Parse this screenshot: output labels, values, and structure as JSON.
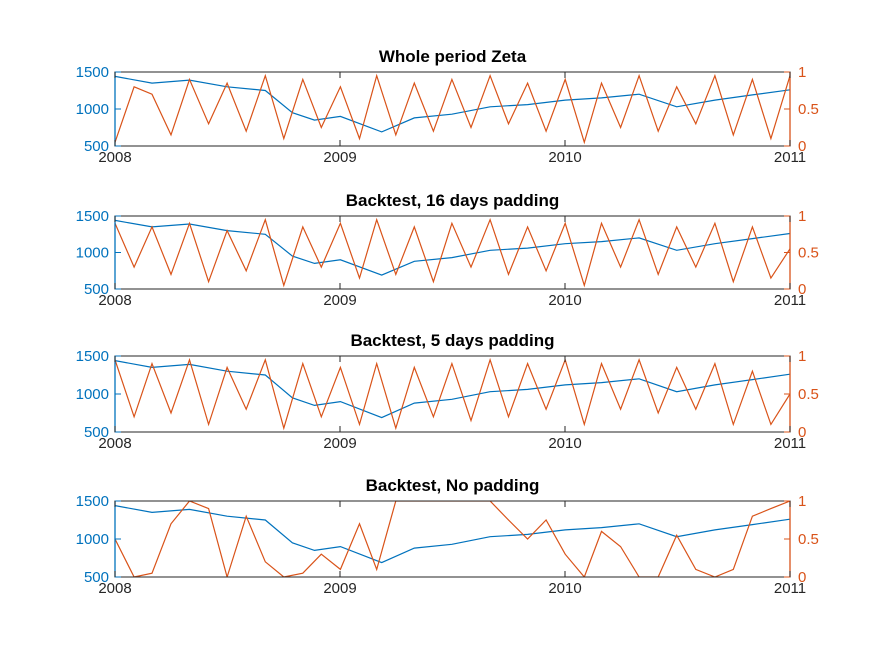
{
  "chart_data": [
    {
      "type": "line",
      "title": "Whole period Zeta",
      "x_ticks": [
        "2008",
        "2009",
        "2010",
        "2011"
      ],
      "xlim": [
        "2008-01-01",
        "2011-01-01"
      ],
      "y_left": {
        "ticks": [
          "500",
          "1000",
          "1500"
        ],
        "lim": [
          500,
          1500
        ],
        "color": "#0072BD"
      },
      "y_right": {
        "ticks": [
          "0",
          "0.5",
          "1"
        ],
        "lim": [
          0,
          1
        ],
        "color": "#D95319"
      },
      "series": [
        {
          "axis": "left",
          "color": "#0072BD",
          "x": [
            "2008-01-01",
            "2008-03-01",
            "2008-05-01",
            "2008-07-01",
            "2008-09-01",
            "2008-10-15",
            "2008-11-20",
            "2009-01-01",
            "2009-03-09",
            "2009-05-01",
            "2009-07-01",
            "2009-09-01",
            "2009-11-01",
            "2010-01-01",
            "2010-03-01",
            "2010-05-01",
            "2010-07-01",
            "2010-09-01",
            "2010-11-01",
            "2011-01-01"
          ],
          "y": [
            1440,
            1350,
            1390,
            1300,
            1250,
            950,
            850,
            900,
            690,
            880,
            930,
            1030,
            1060,
            1120,
            1150,
            1200,
            1030,
            1120,
            1190,
            1260
          ]
        },
        {
          "axis": "right",
          "color": "#D95319",
          "x": [
            "2008-01-01",
            "2008-02-01",
            "2008-03-01",
            "2008-04-01",
            "2008-05-01",
            "2008-06-01",
            "2008-07-01",
            "2008-08-01",
            "2008-09-01",
            "2008-10-01",
            "2008-11-01",
            "2008-12-01",
            "2009-01-01",
            "2009-02-01",
            "2009-03-01",
            "2009-04-01",
            "2009-05-01",
            "2009-06-01",
            "2009-07-01",
            "2009-08-01",
            "2009-09-01",
            "2009-10-01",
            "2009-11-01",
            "2009-12-01",
            "2010-01-01",
            "2010-02-01",
            "2010-03-01",
            "2010-04-01",
            "2010-05-01",
            "2010-06-01",
            "2010-07-01",
            "2010-08-01",
            "2010-09-01",
            "2010-10-01",
            "2010-11-01",
            "2010-12-01",
            "2011-01-01"
          ],
          "y": [
            0.05,
            0.8,
            0.7,
            0.15,
            0.9,
            0.3,
            0.85,
            0.2,
            0.95,
            0.1,
            0.9,
            0.25,
            0.8,
            0.1,
            0.95,
            0.15,
            0.85,
            0.2,
            0.9,
            0.25,
            0.95,
            0.3,
            0.85,
            0.2,
            0.9,
            0.05,
            0.85,
            0.25,
            0.95,
            0.2,
            0.8,
            0.3,
            0.95,
            0.15,
            0.9,
            0.1,
            0.95
          ]
        }
      ]
    },
    {
      "type": "line",
      "title": "Backtest, 16 days padding",
      "x_ticks": [
        "2008",
        "2009",
        "2010",
        "2011"
      ],
      "xlim": [
        "2008-01-01",
        "2011-01-01"
      ],
      "y_left": {
        "ticks": [
          "500",
          "1000",
          "1500"
        ],
        "lim": [
          500,
          1500
        ],
        "color": "#0072BD"
      },
      "y_right": {
        "ticks": [
          "0",
          "0.5",
          "1"
        ],
        "lim": [
          0,
          1
        ],
        "color": "#D95319"
      },
      "series": [
        {
          "axis": "left",
          "color": "#0072BD",
          "x": [
            "2008-01-01",
            "2008-03-01",
            "2008-05-01",
            "2008-07-01",
            "2008-09-01",
            "2008-10-15",
            "2008-11-20",
            "2009-01-01",
            "2009-03-09",
            "2009-05-01",
            "2009-07-01",
            "2009-09-01",
            "2009-11-01",
            "2010-01-01",
            "2010-03-01",
            "2010-05-01",
            "2010-07-01",
            "2010-09-01",
            "2010-11-01",
            "2011-01-01"
          ],
          "y": [
            1440,
            1350,
            1390,
            1300,
            1250,
            950,
            850,
            900,
            690,
            880,
            930,
            1030,
            1060,
            1120,
            1150,
            1200,
            1030,
            1120,
            1190,
            1260
          ]
        },
        {
          "axis": "right",
          "color": "#D95319",
          "x": [
            "2008-01-01",
            "2008-02-01",
            "2008-03-01",
            "2008-04-01",
            "2008-05-01",
            "2008-06-01",
            "2008-07-01",
            "2008-08-01",
            "2008-09-01",
            "2008-10-01",
            "2008-11-01",
            "2008-12-01",
            "2009-01-01",
            "2009-02-01",
            "2009-03-01",
            "2009-04-01",
            "2009-05-01",
            "2009-06-01",
            "2009-07-01",
            "2009-08-01",
            "2009-09-01",
            "2009-10-01",
            "2009-11-01",
            "2009-12-01",
            "2010-01-01",
            "2010-02-01",
            "2010-03-01",
            "2010-04-01",
            "2010-05-01",
            "2010-06-01",
            "2010-07-01",
            "2010-08-01",
            "2010-09-01",
            "2010-10-01",
            "2010-11-01",
            "2010-12-01",
            "2011-01-01"
          ],
          "y": [
            0.9,
            0.3,
            0.85,
            0.2,
            0.9,
            0.1,
            0.8,
            0.25,
            0.95,
            0.05,
            0.85,
            0.3,
            0.9,
            0.15,
            0.95,
            0.2,
            0.85,
            0.1,
            0.9,
            0.3,
            0.95,
            0.2,
            0.85,
            0.25,
            0.9,
            0.05,
            0.9,
            0.3,
            0.95,
            0.2,
            0.85,
            0.3,
            0.9,
            0.1,
            0.85,
            0.15,
            0.55
          ]
        }
      ]
    },
    {
      "type": "line",
      "title": "Backtest, 5 days padding",
      "x_ticks": [
        "2008",
        "2009",
        "2010",
        "2011"
      ],
      "xlim": [
        "2008-01-01",
        "2011-01-01"
      ],
      "y_left": {
        "ticks": [
          "500",
          "1000",
          "1500"
        ],
        "lim": [
          500,
          1500
        ],
        "color": "#0072BD"
      },
      "y_right": {
        "ticks": [
          "0",
          "0.5",
          "1"
        ],
        "lim": [
          0,
          1
        ],
        "color": "#D95319"
      },
      "series": [
        {
          "axis": "left",
          "color": "#0072BD",
          "x": [
            "2008-01-01",
            "2008-03-01",
            "2008-05-01",
            "2008-07-01",
            "2008-09-01",
            "2008-10-15",
            "2008-11-20",
            "2009-01-01",
            "2009-03-09",
            "2009-05-01",
            "2009-07-01",
            "2009-09-01",
            "2009-11-01",
            "2010-01-01",
            "2010-03-01",
            "2010-05-01",
            "2010-07-01",
            "2010-09-01",
            "2010-11-01",
            "2011-01-01"
          ],
          "y": [
            1440,
            1350,
            1390,
            1300,
            1250,
            950,
            850,
            900,
            690,
            880,
            930,
            1030,
            1060,
            1120,
            1150,
            1200,
            1030,
            1120,
            1190,
            1260
          ]
        },
        {
          "axis": "right",
          "color": "#D95319",
          "x": [
            "2008-01-01",
            "2008-02-01",
            "2008-03-01",
            "2008-04-01",
            "2008-05-01",
            "2008-06-01",
            "2008-07-01",
            "2008-08-01",
            "2008-09-01",
            "2008-10-01",
            "2008-11-01",
            "2008-12-01",
            "2009-01-01",
            "2009-02-01",
            "2009-03-01",
            "2009-04-01",
            "2009-05-01",
            "2009-06-01",
            "2009-07-01",
            "2009-08-01",
            "2009-09-01",
            "2009-10-01",
            "2009-11-01",
            "2009-12-01",
            "2010-01-01",
            "2010-02-01",
            "2010-03-01",
            "2010-04-01",
            "2010-05-01",
            "2010-06-01",
            "2010-07-01",
            "2010-08-01",
            "2010-09-01",
            "2010-10-01",
            "2010-11-01",
            "2010-12-01",
            "2011-01-01"
          ],
          "y": [
            0.95,
            0.2,
            0.9,
            0.25,
            0.95,
            0.1,
            0.85,
            0.3,
            0.95,
            0.05,
            0.9,
            0.2,
            0.85,
            0.1,
            0.9,
            0.05,
            0.85,
            0.2,
            0.9,
            0.15,
            0.95,
            0.2,
            0.9,
            0.3,
            0.95,
            0.1,
            0.9,
            0.3,
            0.95,
            0.25,
            0.85,
            0.3,
            0.9,
            0.1,
            0.8,
            0.1,
            0.5
          ]
        }
      ]
    },
    {
      "type": "line",
      "title": "Backtest, No padding",
      "x_ticks": [
        "2008",
        "2009",
        "2010",
        "2011"
      ],
      "xlim": [
        "2008-01-01",
        "2011-01-01"
      ],
      "y_left": {
        "ticks": [
          "500",
          "1000",
          "1500"
        ],
        "lim": [
          500,
          1500
        ],
        "color": "#0072BD"
      },
      "y_right": {
        "ticks": [
          "0",
          "0.5",
          "1"
        ],
        "lim": [
          0,
          1
        ],
        "color": "#D95319"
      },
      "series": [
        {
          "axis": "left",
          "color": "#0072BD",
          "x": [
            "2008-01-01",
            "2008-03-01",
            "2008-05-01",
            "2008-07-01",
            "2008-09-01",
            "2008-10-15",
            "2008-11-20",
            "2009-01-01",
            "2009-03-09",
            "2009-05-01",
            "2009-07-01",
            "2009-09-01",
            "2009-11-01",
            "2010-01-01",
            "2010-03-01",
            "2010-05-01",
            "2010-07-01",
            "2010-09-01",
            "2010-11-01",
            "2011-01-01"
          ],
          "y": [
            1440,
            1350,
            1390,
            1300,
            1250,
            950,
            850,
            900,
            690,
            880,
            930,
            1030,
            1060,
            1120,
            1150,
            1200,
            1030,
            1120,
            1190,
            1260
          ]
        },
        {
          "axis": "right",
          "color": "#D95319",
          "x": [
            "2008-01-01",
            "2008-02-01",
            "2008-03-01",
            "2008-04-01",
            "2008-05-01",
            "2008-06-01",
            "2008-07-01",
            "2008-08-01",
            "2008-09-01",
            "2008-10-01",
            "2008-11-01",
            "2008-12-01",
            "2009-01-01",
            "2009-02-01",
            "2009-03-01",
            "2009-04-01",
            "2009-05-01",
            "2009-06-01",
            "2009-07-01",
            "2009-08-01",
            "2009-09-01",
            "2009-10-01",
            "2009-11-01",
            "2009-12-01",
            "2010-01-01",
            "2010-02-01",
            "2010-03-01",
            "2010-04-01",
            "2010-05-01",
            "2010-06-01",
            "2010-07-01",
            "2010-08-01",
            "2010-09-01",
            "2010-10-01",
            "2010-11-01",
            "2010-12-01",
            "2011-01-01"
          ],
          "y": [
            0.5,
            0.0,
            0.05,
            0.7,
            1.0,
            0.9,
            0.0,
            0.8,
            0.2,
            0.0,
            0.05,
            0.3,
            0.1,
            0.7,
            0.1,
            1.0,
            1.0,
            1.0,
            1.0,
            1.0,
            1.0,
            0.75,
            0.5,
            0.75,
            0.3,
            0.0,
            0.6,
            0.4,
            0.0,
            0.0,
            0.55,
            0.1,
            0.0,
            0.1,
            0.8,
            0.9,
            1.0
          ]
        }
      ]
    }
  ]
}
